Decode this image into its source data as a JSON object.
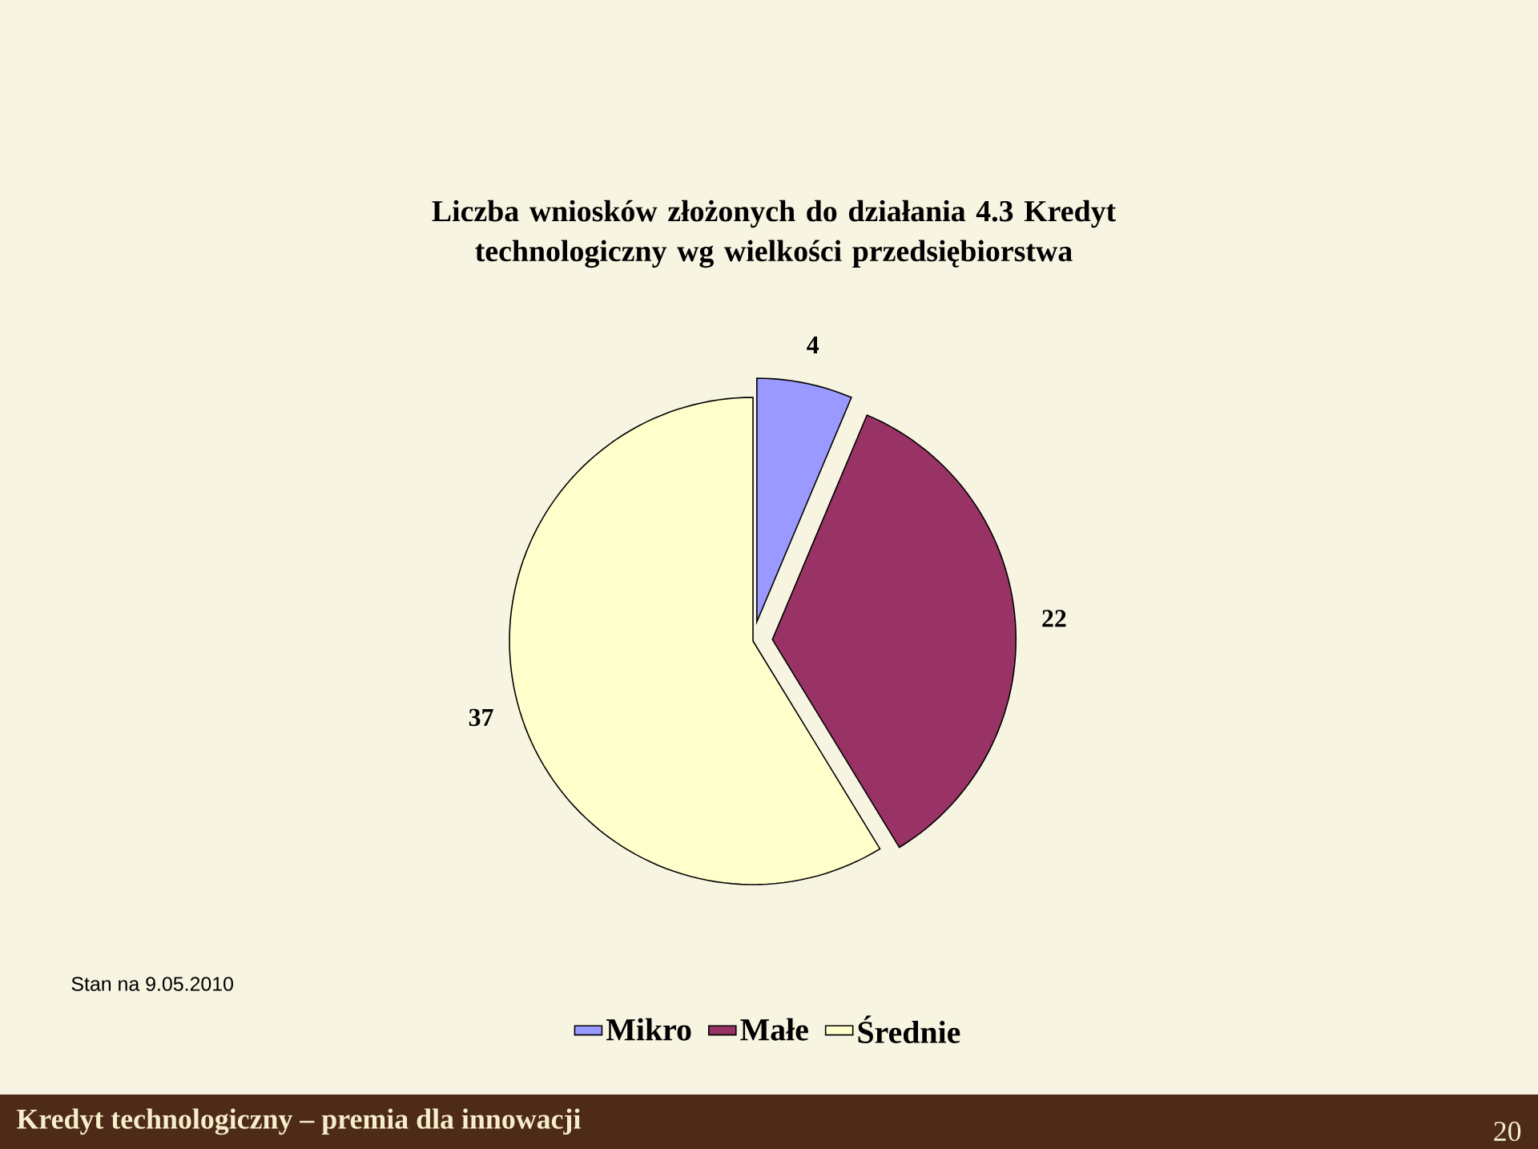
{
  "chart_data": {
    "type": "pie",
    "title": "Liczba wniosków złożonych do działania 4.3 Kredyt technologiczny wg wielkości przedsiębiorstwa",
    "categories": [
      "Mikro",
      "Małe",
      "Średnie"
    ],
    "values": [
      4,
      22,
      37
    ],
    "colors": [
      "#9999ff",
      "#993366",
      "#ffffcc"
    ],
    "data_labels": true,
    "legend": "bottom",
    "annotations": [
      "Stan na 9.05.2010",
      "Kredyt technologiczny – premia dla innowacji",
      "20"
    ]
  }
}
